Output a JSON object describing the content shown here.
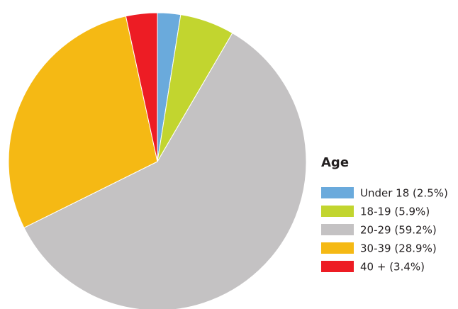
{
  "chart_data": {
    "type": "pie",
    "legend_title": "Age",
    "categories": [
      "Under 18 (2.5%)",
      "18-19 (5.9%)",
      "20-29 (59.2%)",
      "30-39 (28.9%)",
      "40 + (3.4%)"
    ],
    "values": [
      2.5,
      5.9,
      59.2,
      28.9,
      3.4
    ],
    "colors": [
      "#6aaadc",
      "#c2d52f",
      "#c4c2c3",
      "#f5b914",
      "#ed1c24"
    ],
    "legend": "right"
  }
}
